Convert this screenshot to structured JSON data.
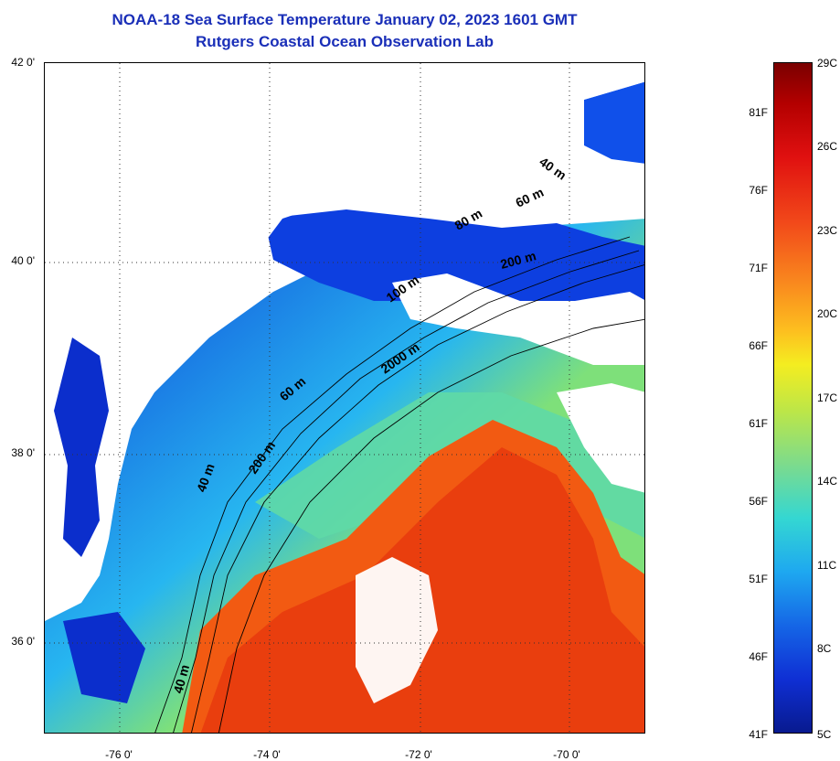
{
  "title": {
    "line1": "NOAA-18 Sea Surface Temperature January 02, 2023 1601 GMT",
    "line2": "Rutgers Coastal Ocean Observation Lab"
  },
  "map": {
    "lat_labels": [
      "42 0'",
      "40 0'",
      "38 0'",
      "36 0'"
    ],
    "lon_labels": [
      "-76 0'",
      "-74 0'",
      "-72 0'",
      "-70 0'"
    ],
    "contour_labels": [
      "40 m",
      "60 m",
      "80 m",
      "200 m",
      "100 m",
      "2000 m",
      "60 m",
      "200 m",
      "40 m",
      "40 m"
    ]
  },
  "colorbar": {
    "fahrenheit_labels": [
      "81F",
      "76F",
      "71F",
      "66F",
      "61F",
      "56F",
      "51F",
      "46F",
      "41F"
    ],
    "celsius_labels": [
      "29C",
      "26C",
      "23C",
      "20C",
      "17C",
      "14C",
      "11C",
      "8C",
      "5C"
    ]
  },
  "colors": {
    "title": "#1a2fb8",
    "cold": "#0a2fc8",
    "warm": "#f25a12"
  }
}
